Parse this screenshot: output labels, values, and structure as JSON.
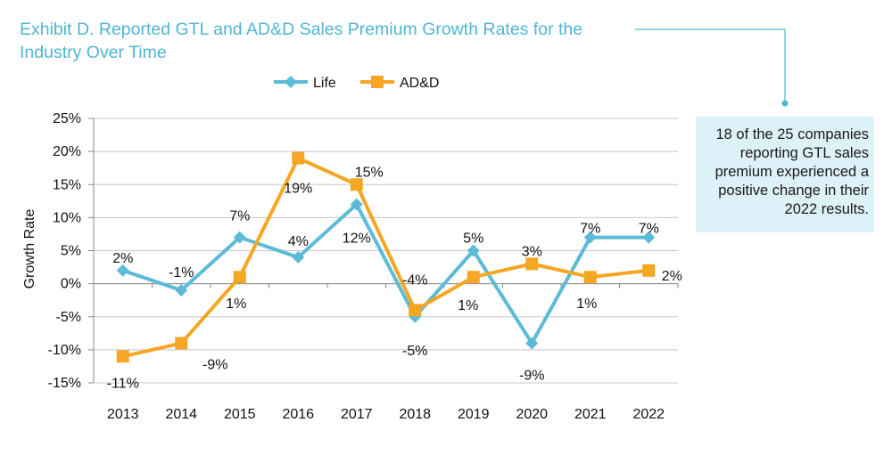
{
  "title": "Exhibit D. Reported GTL and AD&D Sales Premium Growth Rates for the Industry Over Time",
  "callout": "18 of the 25 companies reporting GTL sales premium experienced a positive change in their 2022 results.",
  "colors": {
    "life": "#5bbbd9",
    "add": "#f5a623",
    "title": "#4fb6d3",
    "callout_bg": "#ddf1f8"
  },
  "chart_data": {
    "type": "line",
    "categories": [
      "2013",
      "2014",
      "2015",
      "2016",
      "2017",
      "2018",
      "2019",
      "2020",
      "2021",
      "2022"
    ],
    "ylabel": "Growth Rate",
    "ylim": [
      -15,
      25
    ],
    "yticks": [
      25,
      20,
      15,
      10,
      5,
      0,
      -5,
      -10,
      -15
    ],
    "ytick_labels": [
      "25%",
      "20%",
      "15%",
      "10%",
      "5%",
      "0%",
      "-5%",
      "-10%",
      "-15%"
    ],
    "legend_position": "top",
    "series": [
      {
        "name": "Life",
        "marker": "diamond",
        "values": [
          2,
          -1,
          7,
          4,
          12,
          -5,
          5,
          -9,
          7,
          7
        ],
        "labels": [
          "2%",
          "-1%",
          "7%",
          "4%",
          "12%",
          "-5%",
          "5%",
          "-9%",
          "7%",
          "7%"
        ]
      },
      {
        "name": "AD&D",
        "marker": "square",
        "values": [
          -11,
          -9,
          1,
          19,
          15,
          -4,
          1,
          3,
          1,
          2
        ],
        "labels": [
          "-11%",
          "-9%",
          "1%",
          "19%",
          "15%",
          "-4%",
          "1%",
          "3%",
          "1%",
          "2%"
        ]
      }
    ]
  }
}
